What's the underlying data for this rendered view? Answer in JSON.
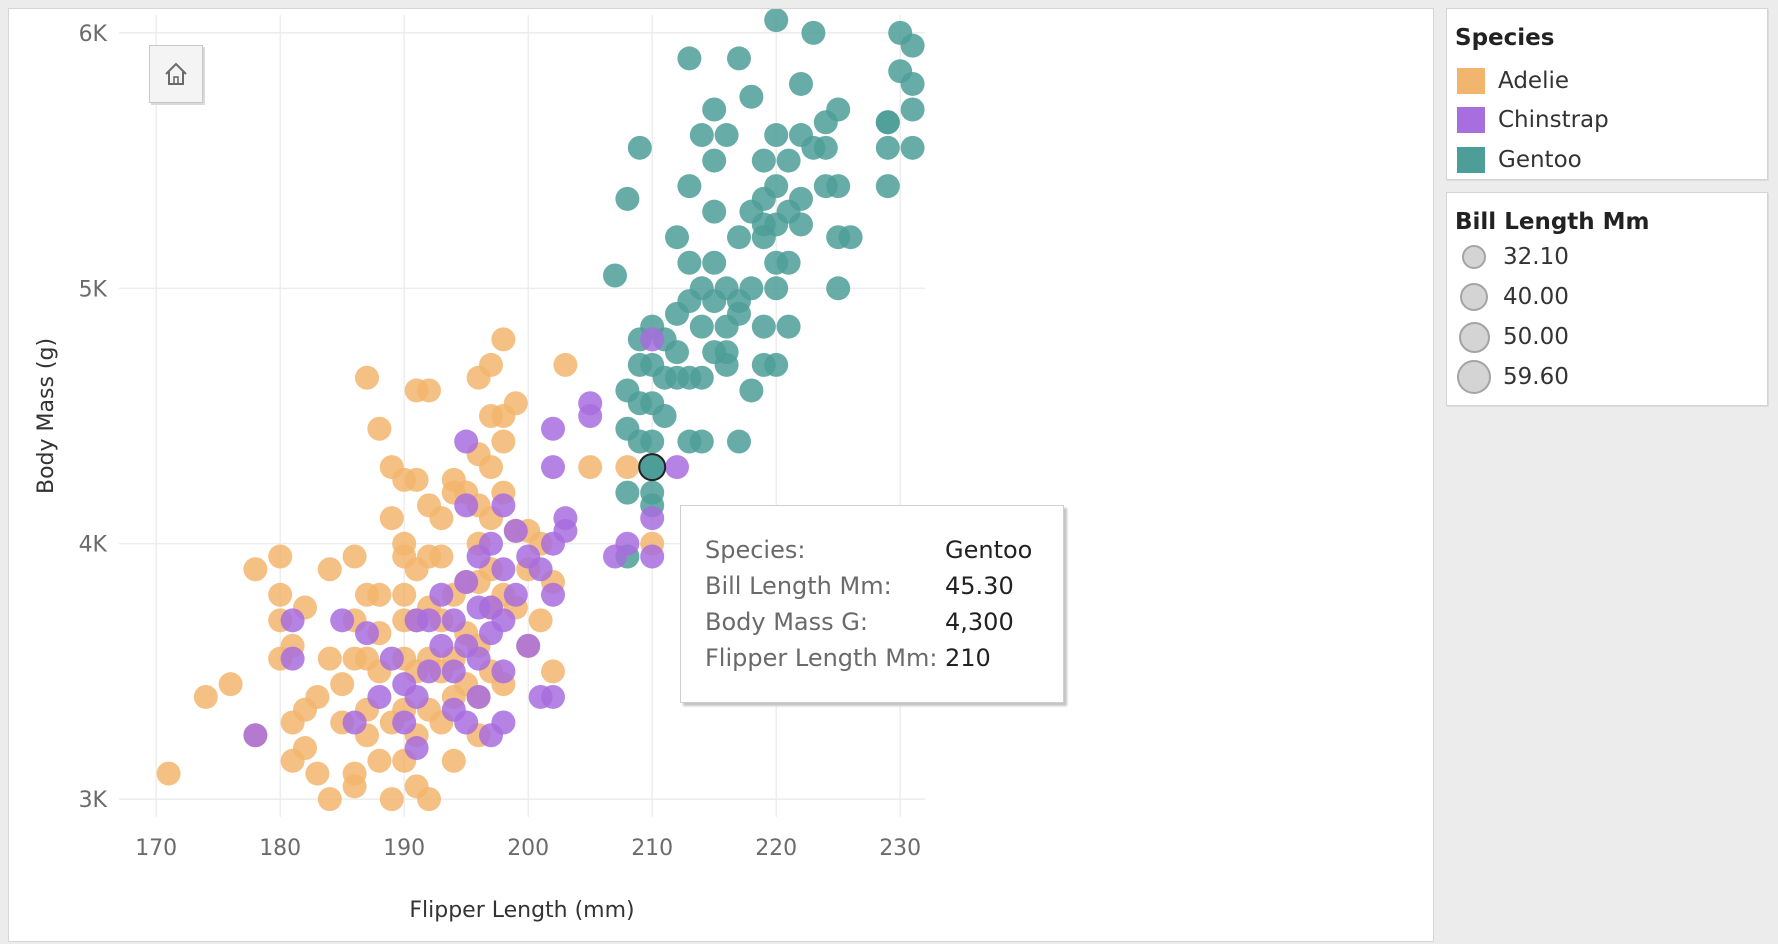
{
  "chart_data": {
    "type": "scatter",
    "xlabel": "Flipper Length (mm)",
    "ylabel": "Body Mass (g)",
    "xlim": [
      167,
      232
    ],
    "ylim": [
      2930,
      6070
    ],
    "x_ticks": [
      170,
      180,
      190,
      200,
      210,
      220,
      230
    ],
    "y_ticks": [
      {
        "value": 3000,
        "label": "3K"
      },
      {
        "value": 4000,
        "label": "4K"
      },
      {
        "value": 5000,
        "label": "5K"
      },
      {
        "value": 6000,
        "label": "6K"
      }
    ],
    "grid": true,
    "legend_position": "right",
    "series": [
      {
        "name": "Adelie",
        "color": "#f2b56d",
        "points": [
          [
            171,
            3100
          ],
          [
            174,
            3400
          ],
          [
            176,
            3450
          ],
          [
            178,
            3900
          ],
          [
            178,
            3250
          ],
          [
            180,
            3950
          ],
          [
            180,
            3800
          ],
          [
            180,
            3700
          ],
          [
            180,
            3550
          ],
          [
            181,
            3600
          ],
          [
            181,
            3300
          ],
          [
            181,
            3150
          ],
          [
            182,
            3750
          ],
          [
            182,
            3350
          ],
          [
            182,
            3200
          ],
          [
            183,
            3400
          ],
          [
            183,
            3100
          ],
          [
            184,
            3900
          ],
          [
            184,
            3550
          ],
          [
            184,
            3000
          ],
          [
            185,
            3300
          ],
          [
            185,
            3450
          ],
          [
            186,
            3950
          ],
          [
            186,
            3700
          ],
          [
            186,
            3550
          ],
          [
            186,
            3100
          ],
          [
            186,
            3050
          ],
          [
            187,
            3800
          ],
          [
            187,
            3550
          ],
          [
            187,
            3350
          ],
          [
            187,
            3250
          ],
          [
            187,
            4650
          ],
          [
            188,
            4450
          ],
          [
            188,
            3800
          ],
          [
            188,
            3650
          ],
          [
            188,
            3500
          ],
          [
            188,
            3150
          ],
          [
            189,
            4300
          ],
          [
            189,
            4100
          ],
          [
            189,
            3300
          ],
          [
            189,
            3000
          ],
          [
            190,
            4250
          ],
          [
            190,
            4000
          ],
          [
            190,
            3950
          ],
          [
            190,
            3800
          ],
          [
            190,
            3700
          ],
          [
            190,
            3550
          ],
          [
            190,
            3350
          ],
          [
            190,
            3150
          ],
          [
            191,
            4600
          ],
          [
            191,
            4250
          ],
          [
            191,
            3900
          ],
          [
            191,
            3700
          ],
          [
            191,
            3500
          ],
          [
            191,
            3250
          ],
          [
            191,
            3050
          ],
          [
            192,
            4600
          ],
          [
            192,
            4150
          ],
          [
            192,
            3950
          ],
          [
            192,
            3750
          ],
          [
            192,
            3550
          ],
          [
            192,
            3350
          ],
          [
            192,
            3000
          ],
          [
            193,
            4100
          ],
          [
            193,
            3950
          ],
          [
            193,
            3700
          ],
          [
            193,
            3500
          ],
          [
            193,
            3300
          ],
          [
            194,
            4250
          ],
          [
            194,
            4200
          ],
          [
            194,
            3800
          ],
          [
            194,
            3550
          ],
          [
            194,
            3400
          ],
          [
            194,
            3150
          ],
          [
            195,
            4200
          ],
          [
            195,
            3850
          ],
          [
            195,
            3650
          ],
          [
            195,
            3450
          ],
          [
            196,
            4650
          ],
          [
            196,
            4350
          ],
          [
            196,
            4150
          ],
          [
            196,
            4000
          ],
          [
            196,
            3850
          ],
          [
            196,
            3600
          ],
          [
            196,
            3400
          ],
          [
            196,
            3250
          ],
          [
            197,
            4700
          ],
          [
            197,
            4500
          ],
          [
            197,
            4300
          ],
          [
            197,
            4100
          ],
          [
            197,
            3900
          ],
          [
            197,
            3750
          ],
          [
            197,
            3500
          ],
          [
            198,
            4800
          ],
          [
            198,
            4500
          ],
          [
            198,
            4400
          ],
          [
            198,
            4200
          ],
          [
            198,
            3800
          ],
          [
            198,
            3450
          ],
          [
            199,
            4550
          ],
          [
            199,
            4050
          ],
          [
            199,
            3750
          ],
          [
            200,
            4050
          ],
          [
            200,
            3900
          ],
          [
            200,
            3600
          ],
          [
            201,
            4000
          ],
          [
            201,
            3700
          ],
          [
            202,
            3850
          ],
          [
            202,
            3500
          ],
          [
            203,
            4700
          ],
          [
            205,
            4300
          ],
          [
            208,
            4300
          ],
          [
            210,
            4000
          ]
        ]
      },
      {
        "name": "Chinstrap",
        "color": "#a86dde",
        "points": [
          [
            178,
            3250
          ],
          [
            181,
            3550
          ],
          [
            181,
            3700
          ],
          [
            185,
            3700
          ],
          [
            186,
            3300
          ],
          [
            187,
            3650
          ],
          [
            188,
            3400
          ],
          [
            189,
            3550
          ],
          [
            190,
            3450
          ],
          [
            190,
            3300
          ],
          [
            191,
            3700
          ],
          [
            191,
            3200
          ],
          [
            191,
            3400
          ],
          [
            192,
            3500
          ],
          [
            192,
            3700
          ],
          [
            193,
            3600
          ],
          [
            193,
            3800
          ],
          [
            194,
            3700
          ],
          [
            194,
            3500
          ],
          [
            194,
            3350
          ],
          [
            195,
            4400
          ],
          [
            195,
            4150
          ],
          [
            195,
            3850
          ],
          [
            195,
            3600
          ],
          [
            195,
            3300
          ],
          [
            196,
            3950
          ],
          [
            196,
            3750
          ],
          [
            196,
            3550
          ],
          [
            196,
            3400
          ],
          [
            197,
            4000
          ],
          [
            197,
            3750
          ],
          [
            197,
            3650
          ],
          [
            197,
            3250
          ],
          [
            198,
            4150
          ],
          [
            198,
            3900
          ],
          [
            198,
            3700
          ],
          [
            198,
            3500
          ],
          [
            198,
            3300
          ],
          [
            199,
            4050
          ],
          [
            199,
            3800
          ],
          [
            200,
            3950
          ],
          [
            200,
            3600
          ],
          [
            201,
            3900
          ],
          [
            201,
            3400
          ],
          [
            202,
            4450
          ],
          [
            202,
            4300
          ],
          [
            202,
            4000
          ],
          [
            202,
            3800
          ],
          [
            202,
            3400
          ],
          [
            203,
            4100
          ],
          [
            203,
            4050
          ],
          [
            205,
            4500
          ],
          [
            205,
            4550
          ],
          [
            207,
            3950
          ],
          [
            208,
            4000
          ],
          [
            210,
            4800
          ],
          [
            210,
            4100
          ],
          [
            210,
            3950
          ],
          [
            212,
            4300
          ]
        ]
      },
      {
        "name": "Gentoo",
        "color": "#4d9d98",
        "points": [
          [
            207,
            5050
          ],
          [
            208,
            5350
          ],
          [
            208,
            4600
          ],
          [
            208,
            4450
          ],
          [
            208,
            4200
          ],
          [
            208,
            3950
          ],
          [
            209,
            5550
          ],
          [
            209,
            4800
          ],
          [
            209,
            4700
          ],
          [
            209,
            4550
          ],
          [
            209,
            4400
          ],
          [
            210,
            4850
          ],
          [
            210,
            4700
          ],
          [
            210,
            4550
          ],
          [
            210,
            4400
          ],
          [
            210,
            4300
          ],
          [
            210,
            4200
          ],
          [
            210,
            4150
          ],
          [
            211,
            4800
          ],
          [
            211,
            4650
          ],
          [
            211,
            4500
          ],
          [
            212,
            5200
          ],
          [
            212,
            4900
          ],
          [
            212,
            4750
          ],
          [
            212,
            4650
          ],
          [
            213,
            5400
          ],
          [
            213,
            5100
          ],
          [
            213,
            4950
          ],
          [
            213,
            4650
          ],
          [
            213,
            4400
          ],
          [
            213,
            5900
          ],
          [
            214,
            5600
          ],
          [
            214,
            5000
          ],
          [
            214,
            4850
          ],
          [
            214,
            4650
          ],
          [
            214,
            4400
          ],
          [
            215,
            5700
          ],
          [
            215,
            5500
          ],
          [
            215,
            5300
          ],
          [
            215,
            5100
          ],
          [
            215,
            4950
          ],
          [
            215,
            4750
          ],
          [
            216,
            5600
          ],
          [
            216,
            5000
          ],
          [
            216,
            4850
          ],
          [
            216,
            4750
          ],
          [
            216,
            4700
          ],
          [
            217,
            5900
          ],
          [
            217,
            5200
          ],
          [
            217,
            4950
          ],
          [
            217,
            4900
          ],
          [
            217,
            4400
          ],
          [
            218,
            5750
          ],
          [
            218,
            5300
          ],
          [
            218,
            5000
          ],
          [
            218,
            4600
          ],
          [
            219,
            5500
          ],
          [
            219,
            5350
          ],
          [
            219,
            5250
          ],
          [
            219,
            5200
          ],
          [
            219,
            4850
          ],
          [
            219,
            4700
          ],
          [
            220,
            6050
          ],
          [
            220,
            5600
          ],
          [
            220,
            5400
          ],
          [
            220,
            5250
          ],
          [
            220,
            5100
          ],
          [
            220,
            5000
          ],
          [
            220,
            4700
          ],
          [
            221,
            5500
          ],
          [
            221,
            5300
          ],
          [
            221,
            5100
          ],
          [
            221,
            4850
          ],
          [
            222,
            5800
          ],
          [
            222,
            5350
          ],
          [
            222,
            5250
          ],
          [
            222,
            5600
          ],
          [
            223,
            6000
          ],
          [
            223,
            5550
          ],
          [
            224,
            5650
          ],
          [
            224,
            5400
          ],
          [
            224,
            5550
          ],
          [
            225,
            5700
          ],
          [
            225,
            5400
          ],
          [
            225,
            5000
          ],
          [
            225,
            5200
          ],
          [
            226,
            5200
          ],
          [
            229,
            5650
          ],
          [
            229,
            5650
          ],
          [
            229,
            5550
          ],
          [
            229,
            5400
          ],
          [
            230,
            6000
          ],
          [
            230,
            5850
          ],
          [
            231,
            5950
          ],
          [
            231,
            5800
          ],
          [
            231,
            5550
          ],
          [
            231,
            5700
          ]
        ]
      }
    ],
    "highlighted_point": {
      "series": "Gentoo",
      "x": 210,
      "y": 4300
    }
  },
  "species_legend": {
    "title": "Species",
    "items": [
      {
        "label": "Adelie",
        "color": "#f2b56d"
      },
      {
        "label": "Chinstrap",
        "color": "#a86dde"
      },
      {
        "label": "Gentoo",
        "color": "#4d9d98"
      }
    ]
  },
  "size_legend": {
    "title": "Bill Length Mm",
    "items": [
      {
        "label": "32.10"
      },
      {
        "label": "40.00"
      },
      {
        "label": "50.00"
      },
      {
        "label": "59.60"
      }
    ]
  },
  "tooltip": {
    "rows": [
      {
        "key": "Species:",
        "value": "Gentoo"
      },
      {
        "key": "Bill Length Mm:",
        "value": "45.30"
      },
      {
        "key": "Body Mass G:",
        "value": "4,300"
      },
      {
        "key": "Flipper Length Mm:",
        "value": "210"
      }
    ]
  },
  "toolbar": {
    "home_icon": "home-icon"
  }
}
